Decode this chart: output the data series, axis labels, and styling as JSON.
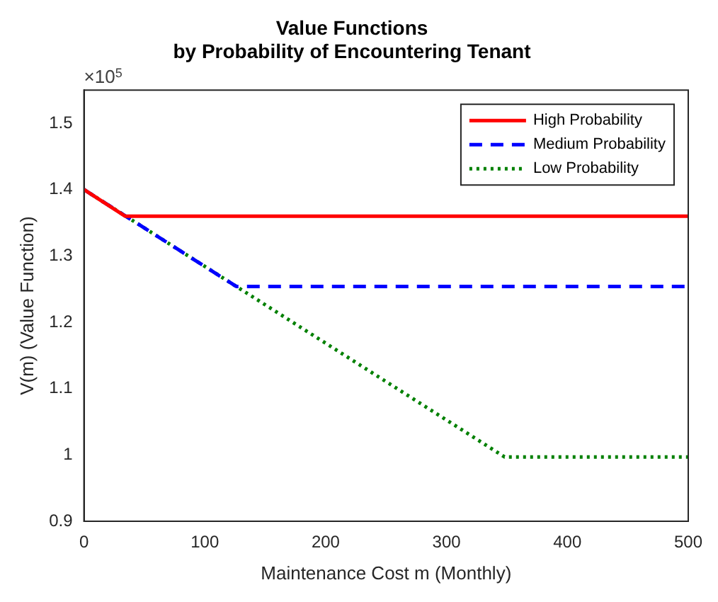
{
  "chart_data": {
    "type": "line",
    "title": "Value Functions\nby Probability of Encountering Tenant",
    "xlabel": "Maintenance Cost m (Monthly)",
    "ylabel": "V(m) (Value Function)",
    "annotations": [
      "×10$^{5}$"
    ],
    "series": [
      {
        "name": "High Probability",
        "color": "#ff0000",
        "line_style": "solid",
        "x": [
          0,
          34,
          500
        ],
        "values": [
          1.4,
          1.36,
          1.36
        ]
      },
      {
        "name": "Medium Probability",
        "color": "#0000ff",
        "line_style": "dashed",
        "x": [
          0,
          126,
          500
        ],
        "values": [
          1.4,
          1.254,
          1.254
        ]
      },
      {
        "name": "Low Probability",
        "color": "#008000",
        "line_style": "dotted",
        "x": [
          0,
          348,
          500
        ],
        "values": [
          1.4,
          0.997,
          0.997
        ]
      }
    ],
    "xlim": [
      0,
      500
    ],
    "xticks": [
      0,
      100,
      200,
      300,
      400,
      500
    ],
    "ylim": [
      0.9,
      1.55
    ],
    "yticks": [
      0.9,
      1,
      1.1,
      1.2,
      1.3,
      1.4,
      1.5
    ],
    "grid": false,
    "legend": "top right",
    "marker": "none"
  }
}
